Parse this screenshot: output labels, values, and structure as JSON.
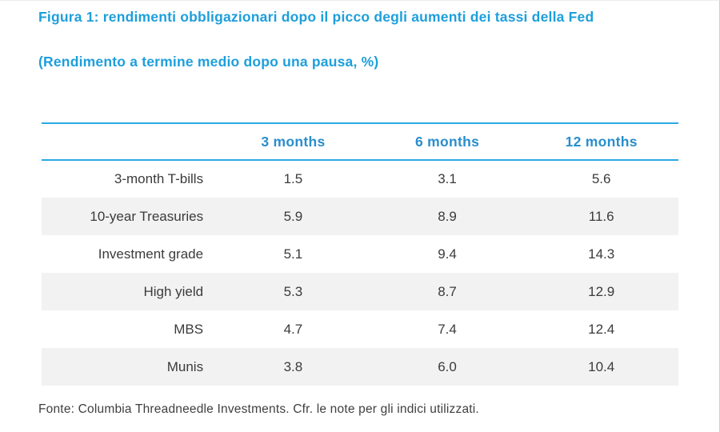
{
  "figure": {
    "title": "Figura 1: rendimenti obbligazionari dopo il picco degli aumenti dei tassi della Fed",
    "subtitle": "(Rendimento a termine medio dopo una pausa, %)",
    "source": "Fonte: Columbia Threadneedle Investments. Cfr. le note per gli indici utilizzati."
  },
  "chart_data": {
    "type": "table",
    "title": "Figura 1: rendimenti obbligazionari dopo il picco degli aumenti dei tassi della Fed",
    "subtitle": "(Rendimento a termine medio dopo una pausa, %)",
    "unit": "%",
    "columns": [
      "",
      "3 months",
      "6 months",
      "12 months"
    ],
    "rows": [
      {
        "label": "3-month T-bills",
        "values": [
          "1.5",
          "3.1",
          "5.6"
        ]
      },
      {
        "label": "10-year Treasuries",
        "values": [
          "5.9",
          "8.9",
          "11.6"
        ]
      },
      {
        "label": "Investment grade",
        "values": [
          "5.1",
          "9.4",
          "14.3"
        ]
      },
      {
        "label": "High yield",
        "values": [
          "5.3",
          "8.7",
          "12.9"
        ]
      },
      {
        "label": "MBS",
        "values": [
          "4.7",
          "7.4",
          "12.4"
        ]
      },
      {
        "label": "Munis",
        "values": [
          "3.8",
          "6.0",
          "10.4"
        ]
      }
    ],
    "source": "Fonte: Columbia Threadneedle Investments. Cfr. le note per gli indici utilizzati.",
    "layout": {
      "zebra_striping": true,
      "first_data_row_background": "white"
    }
  },
  "colors": {
    "title_blue": "#1d9fdc",
    "header_text_blue": "#2a8ecd",
    "rule_blue": "#29abe2",
    "row_alt_background": "#f2f2f2",
    "body_text": "#3b3b3b",
    "source_text": "#3f3f3f"
  }
}
